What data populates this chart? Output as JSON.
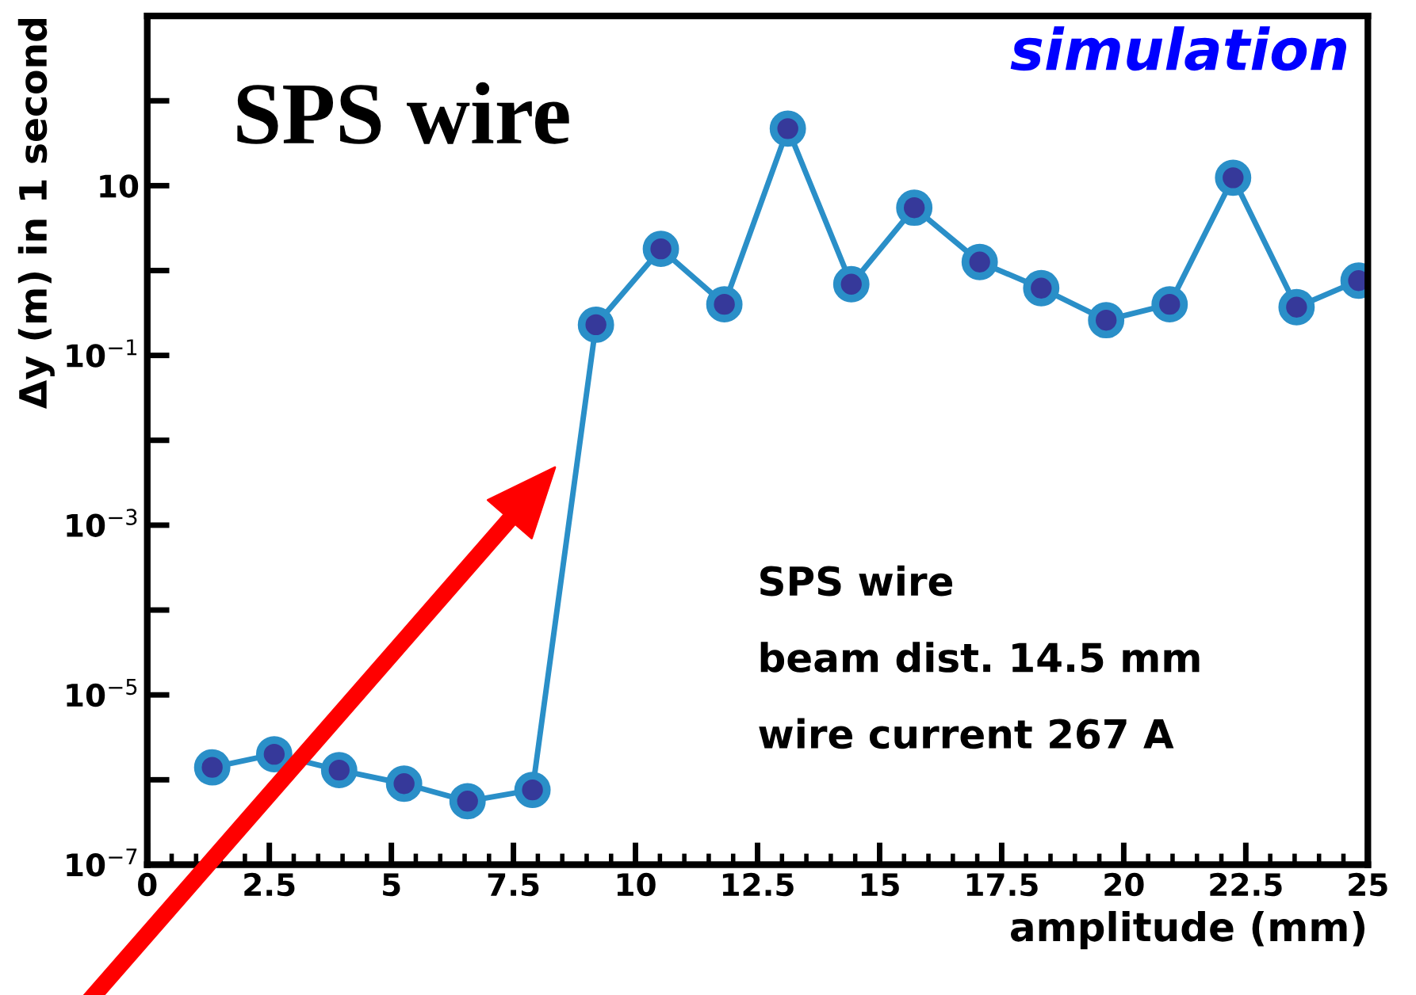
{
  "chart_data": {
    "type": "line",
    "title": "SPS wire",
    "xlabel": "amplitude (mm)",
    "ylabel": "Δy (m) in 1 second",
    "annotations": [
      "simulation",
      "SPS wire",
      "beam dist. 14.5 mm",
      "wire current 267 A"
    ],
    "x": [
      1.33,
      2.6,
      3.93,
      5.26,
      6.56,
      7.89,
      9.19,
      10.52,
      11.82,
      13.12,
      14.42,
      15.71,
      17.05,
      18.31,
      19.64,
      20.94,
      22.24,
      23.54,
      24.81
    ],
    "series": [
      {
        "color": "#2a8fc8",
        "values": [
          1.4e-06,
          2e-06,
          1.3e-06,
          9e-07,
          5.6e-07,
          7.6e-07,
          0.23,
          1.8,
          0.4,
          47,
          0.69,
          5.5,
          1.26,
          0.62,
          0.26,
          0.4,
          12.4,
          0.37,
          0.76
        ]
      }
    ],
    "marker": "circle",
    "line_style": "solid",
    "log": "y",
    "xlim": [
      0,
      25
    ],
    "xticks": [
      0,
      {
        "value": 2.5,
        "label": "2.5"
      },
      5,
      {
        "value": 7.5,
        "label": "7.5"
      },
      10,
      {
        "value": 12.5,
        "label": "12.5"
      },
      15,
      {
        "value": 17.5,
        "label": "17.5"
      },
      20,
      {
        "value": 22.5,
        "label": "22.5"
      },
      25
    ],
    "ylim": [
      1e-07,
      1000
    ],
    "yticks": [
      {
        "value": 1e-07,
        "label": "10$^{−7}$"
      },
      {
        "value": 1e-06,
        "label": null
      },
      {
        "value": 1e-05,
        "label": "10$^{−5}$"
      },
      {
        "value": 0.0001,
        "label": null
      },
      {
        "value": 0.001,
        "label": "10$^{−3}$"
      },
      {
        "value": 0.01,
        "label": null
      },
      {
        "value": 0.1,
        "label": "10$^{−1}$"
      },
      {
        "value": 1,
        "label": null
      },
      10,
      {
        "value": 100,
        "label": null
      }
    ]
  }
}
